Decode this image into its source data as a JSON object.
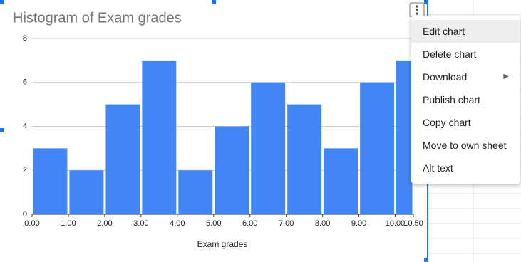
{
  "chart_data": {
    "type": "histogram",
    "title": "Histogram of Exam grades",
    "x_label": "Exam grades",
    "bins": [
      0,
      1,
      2,
      3,
      4,
      5,
      6,
      7,
      8,
      9,
      10,
      10.5
    ],
    "values": [
      3,
      2,
      5,
      7,
      2,
      4,
      6,
      5,
      3,
      6,
      7
    ],
    "color": "#4285f4",
    "xlim": [
      0,
      10.5
    ],
    "xticks": [
      {
        "value": 0,
        "label": "0.00"
      },
      {
        "value": 1,
        "label": "1.00"
      },
      {
        "value": 2,
        "label": "2.00"
      },
      {
        "value": 3,
        "label": "3.00"
      },
      {
        "value": 4,
        "label": "4.00"
      },
      {
        "value": 5,
        "label": "5.00"
      },
      {
        "value": 6,
        "label": "6.00"
      },
      {
        "value": 7,
        "label": "7.00"
      },
      {
        "value": 8,
        "label": "8.00"
      },
      {
        "value": 9,
        "label": "9.00"
      },
      {
        "value": 10,
        "label": "10.00"
      },
      {
        "value": 10.5,
        "label": "10.50"
      }
    ],
    "ylim": [
      0,
      8
    ],
    "yticks": [
      0,
      2,
      4,
      6,
      8
    ],
    "grid": true
  },
  "menu": {
    "items": [
      "Edit chart",
      "Delete chart",
      "Download",
      "Publish chart",
      "Copy chart",
      "Move to own sheet",
      "Alt text"
    ]
  }
}
